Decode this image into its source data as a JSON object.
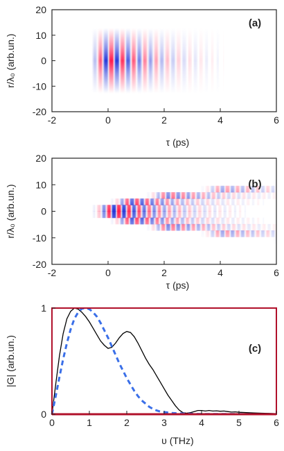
{
  "colors": {
    "positive": "#ff1a4b",
    "negative": "#2233d6",
    "dashed_curve": "#3a6fe8",
    "axis_lower": "#b0102a",
    "text": "#222222"
  },
  "chart_data": [
    {
      "id": "a",
      "type": "heatmap",
      "panel_label": "(a)",
      "xlabel": "τ (ps)",
      "ylabel": "r/λ₀ (arb.un.)",
      "xlim": [
        -2,
        6
      ],
      "ylim": [
        -20,
        20
      ],
      "xticks": [
        -2,
        0,
        2,
        4,
        6
      ],
      "yticks": [
        -20,
        -10,
        0,
        10,
        20
      ],
      "pattern": {
        "description_free": true,
        "carrier_period_ps": 0.4,
        "field_start_ps": -0.6,
        "peak_ps": 0.1,
        "decay_ps": 1.1,
        "radial_halfwidth": 8,
        "wavefront_curvature": 0,
        "first_lobe_sign": -1
      }
    },
    {
      "id": "b",
      "type": "heatmap",
      "panel_label": "(b)",
      "xlabel": "τ (ps)",
      "ylabel": "r/λ₀ (arb.un.)",
      "xlim": [
        -2,
        6
      ],
      "ylim": [
        -20,
        20
      ],
      "xticks": [
        -2,
        0,
        2,
        4,
        6
      ],
      "yticks": [
        -20,
        -10,
        0,
        10,
        20
      ],
      "pattern": {
        "carrier_period_ps": 0.36,
        "field_start_ps": -0.7,
        "peak_ps": 0.2,
        "decay_ps": 1.3,
        "radial_halfwidth": 9,
        "wavefront_curvature": 0.004,
        "first_lobe_sign": -1
      }
    },
    {
      "id": "c",
      "type": "line",
      "panel_label": "(c)",
      "xlabel": "υ (THz)",
      "ylabel": "|G| (arb.un.)",
      "xlim": [
        0,
        6
      ],
      "ylim": [
        0,
        1
      ],
      "xticks": [
        0,
        1,
        2,
        3,
        4,
        5,
        6
      ],
      "yticks": [
        0,
        1
      ],
      "series": [
        {
          "style": "solid",
          "color": "#000000",
          "x": [
            0,
            0.1,
            0.2,
            0.3,
            0.4,
            0.5,
            0.6,
            0.7,
            0.8,
            0.9,
            1.0,
            1.1,
            1.2,
            1.3,
            1.4,
            1.5,
            1.6,
            1.7,
            1.8,
            1.9,
            2.0,
            2.1,
            2.2,
            2.3,
            2.4,
            2.5,
            2.6,
            2.7,
            2.8,
            2.9,
            3.0,
            3.1,
            3.2,
            3.3,
            3.4,
            3.5,
            3.6,
            3.7,
            3.8,
            3.9,
            4.0,
            4.1,
            4.2,
            4.3,
            4.4,
            4.5,
            4.6,
            4.7,
            4.8,
            4.9,
            5.0,
            5.2,
            5.4,
            5.6,
            5.8,
            6.0
          ],
          "y": [
            0,
            0.28,
            0.55,
            0.76,
            0.9,
            0.97,
            1.0,
            0.99,
            0.96,
            0.92,
            0.87,
            0.81,
            0.75,
            0.69,
            0.65,
            0.62,
            0.63,
            0.67,
            0.72,
            0.76,
            0.78,
            0.77,
            0.73,
            0.67,
            0.6,
            0.53,
            0.47,
            0.42,
            0.36,
            0.3,
            0.24,
            0.18,
            0.13,
            0.08,
            0.04,
            0.015,
            0.01,
            0.015,
            0.025,
            0.035,
            0.035,
            0.03,
            0.035,
            0.03,
            0.032,
            0.028,
            0.03,
            0.025,
            0.02,
            0.022,
            0.018,
            0.015,
            0.012,
            0.01,
            0.008,
            0.006
          ]
        },
        {
          "style": "dashed",
          "color": "#3a6fe8",
          "x": [
            0,
            0.1,
            0.2,
            0.3,
            0.4,
            0.5,
            0.6,
            0.7,
            0.8,
            0.9,
            1.0,
            1.1,
            1.2,
            1.3,
            1.4,
            1.5,
            1.6,
            1.7,
            1.8,
            1.9,
            2.0,
            2.1,
            2.2,
            2.3,
            2.4,
            2.5,
            2.6,
            2.7,
            2.8,
            2.9,
            3.0,
            3.2,
            3.4,
            3.6,
            3.8,
            4.0,
            4.5,
            5.0,
            5.5,
            6.0
          ],
          "y": [
            0,
            0.17,
            0.35,
            0.52,
            0.67,
            0.8,
            0.9,
            0.96,
            0.995,
            1.0,
            0.99,
            0.96,
            0.92,
            0.86,
            0.79,
            0.72,
            0.64,
            0.56,
            0.48,
            0.41,
            0.34,
            0.28,
            0.22,
            0.17,
            0.13,
            0.1,
            0.07,
            0.05,
            0.035,
            0.025,
            0.02,
            0.012,
            0.008,
            0.005,
            0.003,
            0.002,
            0.001,
            0.001,
            0,
            0
          ]
        }
      ]
    }
  ]
}
